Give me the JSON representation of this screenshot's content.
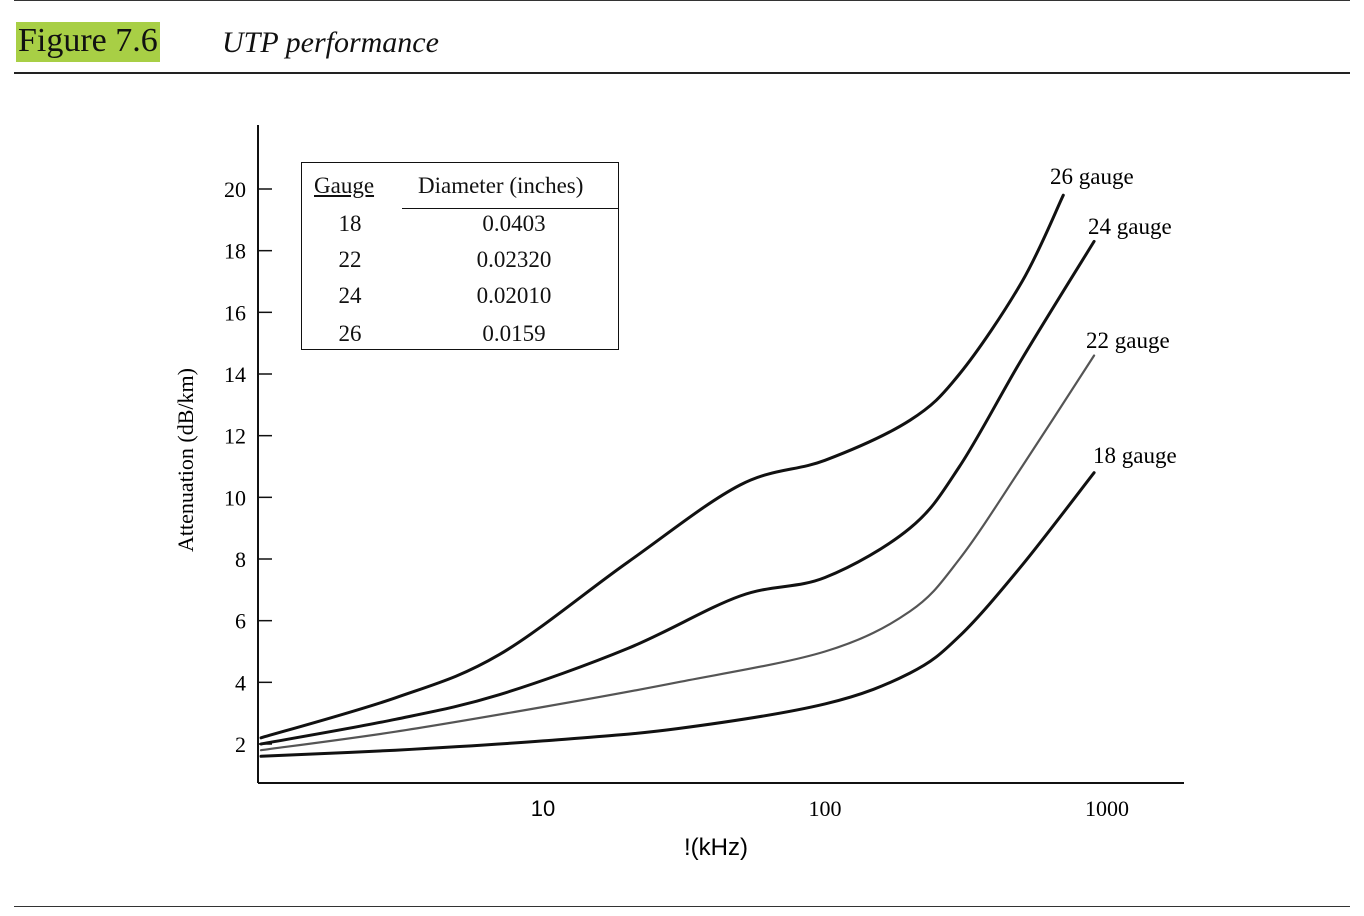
{
  "figure": {
    "label": "Figure 7.6",
    "caption": "UTP performance"
  },
  "chart_data": {
    "type": "line",
    "title": "",
    "xlabel": "!(kHz)",
    "ylabel": "Attenuation (dB/km)",
    "x_scale": "log",
    "xlim": [
      1,
      1400
    ],
    "ylim": [
      0,
      22
    ],
    "x_ticks": [
      10,
      100,
      1000
    ],
    "x_tick_labels": [
      "10",
      "100",
      "1000"
    ],
    "y_ticks": [
      2,
      4,
      6,
      8,
      10,
      12,
      14,
      16,
      18,
      20
    ],
    "y_tick_labels": [
      "2",
      "4",
      "6",
      "8",
      "10",
      "12",
      "14",
      "16",
      "18",
      "20"
    ],
    "grid": false,
    "series": [
      {
        "name": "26 gauge",
        "color": "#111111",
        "x": [
          1,
          3,
          7,
          20,
          50,
          100,
          200,
          300,
          500,
          700
        ],
        "y": [
          2.2,
          3.5,
          4.9,
          7.9,
          10.4,
          11.2,
          12.5,
          14.0,
          17.0,
          19.8
        ]
      },
      {
        "name": "24 gauge",
        "color": "#111111",
        "x": [
          1,
          3,
          7,
          20,
          50,
          100,
          200,
          300,
          500,
          900
        ],
        "y": [
          2.0,
          2.8,
          3.6,
          5.1,
          6.8,
          7.4,
          9.0,
          11.0,
          14.5,
          18.3
        ]
      },
      {
        "name": "22 gauge",
        "color": "#555555",
        "x": [
          1,
          3,
          10,
          30,
          100,
          200,
          300,
          500,
          900
        ],
        "y": [
          1.8,
          2.4,
          3.2,
          4.0,
          5.0,
          6.3,
          8.0,
          11.0,
          14.6
        ]
      },
      {
        "name": "18 gauge",
        "color": "#111111",
        "x": [
          1,
          3,
          10,
          30,
          100,
          200,
          300,
          500,
          900
        ],
        "y": [
          1.6,
          1.8,
          2.1,
          2.5,
          3.3,
          4.3,
          5.5,
          7.8,
          10.8
        ]
      }
    ]
  },
  "legend_table": {
    "headers": [
      "Gauge",
      "Diameter (inches)"
    ],
    "rows": [
      {
        "gauge": "18",
        "diameter": "0.0403"
      },
      {
        "gauge": "22",
        "diameter": "0.02320"
      },
      {
        "gauge": "24",
        "diameter": "0.02010"
      },
      {
        "gauge": "26",
        "diameter": "0.0159"
      }
    ]
  }
}
